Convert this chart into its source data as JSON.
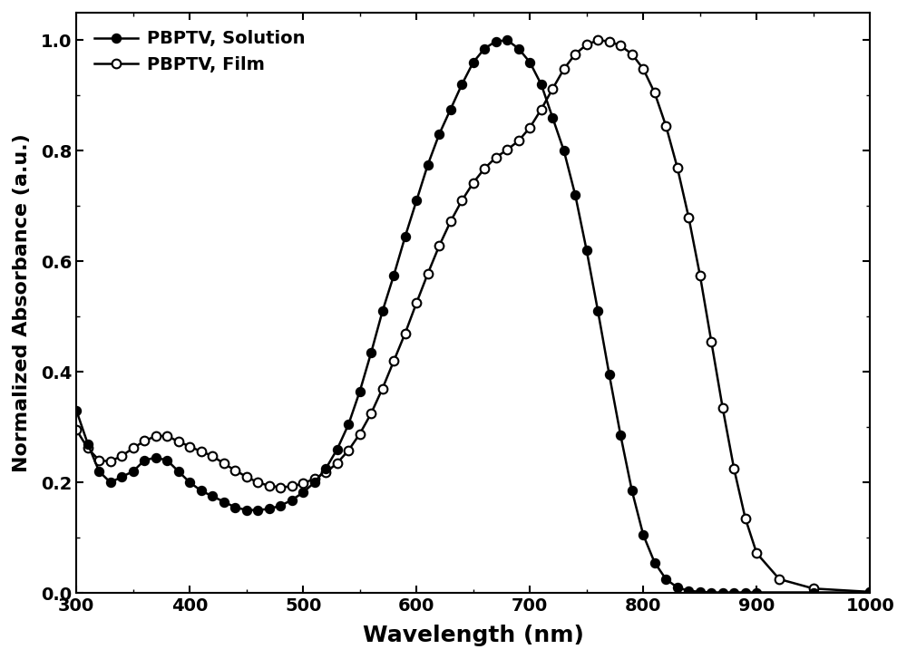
{
  "solution_x": [
    300,
    310,
    320,
    330,
    340,
    350,
    360,
    370,
    380,
    390,
    400,
    410,
    420,
    430,
    440,
    450,
    460,
    470,
    480,
    490,
    500,
    510,
    520,
    530,
    540,
    550,
    560,
    570,
    580,
    590,
    600,
    610,
    620,
    630,
    640,
    650,
    660,
    670,
    680,
    690,
    700,
    710,
    720,
    730,
    740,
    750,
    760,
    770,
    780,
    790,
    800,
    810,
    820,
    830,
    840,
    850,
    860,
    870,
    880,
    890,
    900,
    950,
    1000
  ],
  "solution_y": [
    0.33,
    0.27,
    0.22,
    0.2,
    0.21,
    0.22,
    0.24,
    0.245,
    0.24,
    0.22,
    0.2,
    0.185,
    0.175,
    0.165,
    0.155,
    0.15,
    0.15,
    0.152,
    0.158,
    0.168,
    0.182,
    0.2,
    0.225,
    0.26,
    0.305,
    0.365,
    0.435,
    0.51,
    0.575,
    0.645,
    0.71,
    0.775,
    0.83,
    0.875,
    0.92,
    0.96,
    0.985,
    0.998,
    1.0,
    0.985,
    0.96,
    0.92,
    0.86,
    0.8,
    0.72,
    0.62,
    0.51,
    0.395,
    0.285,
    0.185,
    0.105,
    0.055,
    0.025,
    0.01,
    0.004,
    0.002,
    0.001,
    0.001,
    0.001,
    0.001,
    0.001,
    0.001,
    0.001
  ],
  "film_x": [
    300,
    310,
    320,
    330,
    340,
    350,
    360,
    370,
    380,
    390,
    400,
    410,
    420,
    430,
    440,
    450,
    460,
    470,
    480,
    490,
    500,
    510,
    520,
    530,
    540,
    550,
    560,
    570,
    580,
    590,
    600,
    610,
    620,
    630,
    640,
    650,
    660,
    670,
    680,
    690,
    700,
    710,
    720,
    730,
    740,
    750,
    760,
    770,
    780,
    790,
    800,
    810,
    820,
    830,
    840,
    850,
    860,
    870,
    880,
    890,
    900,
    920,
    950,
    1000
  ],
  "film_y": [
    0.295,
    0.262,
    0.24,
    0.238,
    0.248,
    0.262,
    0.275,
    0.284,
    0.284,
    0.274,
    0.265,
    0.256,
    0.248,
    0.234,
    0.222,
    0.21,
    0.2,
    0.194,
    0.191,
    0.193,
    0.198,
    0.207,
    0.218,
    0.235,
    0.258,
    0.288,
    0.325,
    0.37,
    0.42,
    0.47,
    0.525,
    0.578,
    0.628,
    0.672,
    0.71,
    0.742,
    0.768,
    0.788,
    0.802,
    0.818,
    0.842,
    0.875,
    0.912,
    0.948,
    0.975,
    0.992,
    1.0,
    0.998,
    0.99,
    0.975,
    0.948,
    0.905,
    0.845,
    0.77,
    0.68,
    0.575,
    0.455,
    0.335,
    0.225,
    0.135,
    0.072,
    0.025,
    0.008,
    0.002
  ],
  "solution_label": "PBPTV, Solution",
  "film_label": "PBPTV, Film",
  "xlabel": "Wavelength (nm)",
  "ylabel": "Normalized Absorbance (a.u.)",
  "xlim": [
    300,
    1000
  ],
  "ylim": [
    0.0,
    1.05
  ],
  "xticks": [
    300,
    400,
    500,
    600,
    700,
    800,
    900,
    1000
  ],
  "yticks": [
    0.0,
    0.2,
    0.4,
    0.6,
    0.8,
    1.0
  ],
  "line_color": "#000000",
  "markersize": 7,
  "linewidth": 1.8,
  "legend_fontsize": 14,
  "tick_fontsize": 14,
  "xlabel_fontsize": 18,
  "ylabel_fontsize": 16
}
